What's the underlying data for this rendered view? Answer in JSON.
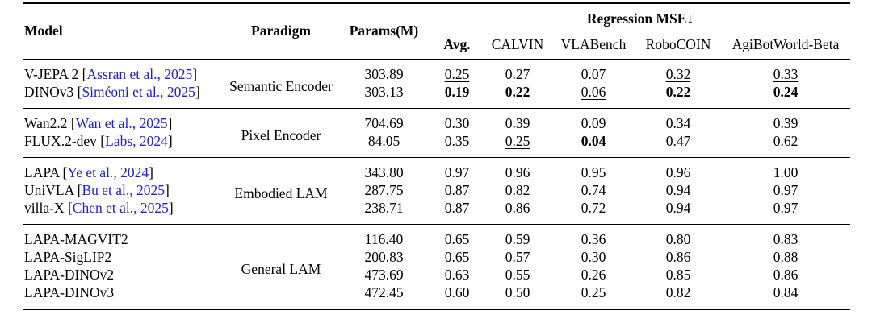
{
  "colors": {
    "background": "#FFFFFF",
    "text": "#000000",
    "rule": "#000000",
    "citation_link": "#2222CC"
  },
  "table": {
    "citation_brackets": [
      "[",
      "]"
    ],
    "columns": {
      "model": "Model",
      "paradigm": "Paradigm",
      "params": "Params(M)",
      "mse_group": "Regression MSE↓",
      "subcolumns": [
        "Avg.",
        "CALVIN",
        "VLABench",
        "RoboCOIN",
        "AgiBotWorld-Beta"
      ]
    },
    "groups": [
      {
        "paradigm": "Semantic Encoder",
        "rows": [
          {
            "model": "V-JEPA 2",
            "citation": "Assran et al., 2025",
            "params": "303.89",
            "mse": [
              {
                "value": "0.25",
                "emphasis": "underline"
              },
              {
                "value": "0.27",
                "emphasis": "none"
              },
              {
                "value": "0.07",
                "emphasis": "none"
              },
              {
                "value": "0.32",
                "emphasis": "underline"
              },
              {
                "value": "0.33",
                "emphasis": "underline"
              }
            ]
          },
          {
            "model": "DINOv3",
            "citation": "Siméoni et al., 2025",
            "params": "303.13",
            "mse": [
              {
                "value": "0.19",
                "emphasis": "bold"
              },
              {
                "value": "0.22",
                "emphasis": "bold"
              },
              {
                "value": "0.06",
                "emphasis": "underline"
              },
              {
                "value": "0.22",
                "emphasis": "bold"
              },
              {
                "value": "0.24",
                "emphasis": "bold"
              }
            ]
          }
        ]
      },
      {
        "paradigm": "Pixel Encoder",
        "rows": [
          {
            "model": "Wan2.2",
            "citation": "Wan et al., 2025",
            "params": "704.69",
            "mse": [
              {
                "value": "0.30",
                "emphasis": "none"
              },
              {
                "value": "0.39",
                "emphasis": "none"
              },
              {
                "value": "0.09",
                "emphasis": "none"
              },
              {
                "value": "0.34",
                "emphasis": "none"
              },
              {
                "value": "0.39",
                "emphasis": "none"
              }
            ]
          },
          {
            "model": "FLUX.2-dev",
            "citation": "Labs, 2024",
            "params": "84.05",
            "mse": [
              {
                "value": "0.35",
                "emphasis": "none"
              },
              {
                "value": "0.25",
                "emphasis": "underline"
              },
              {
                "value": "0.04",
                "emphasis": "bold"
              },
              {
                "value": "0.47",
                "emphasis": "none"
              },
              {
                "value": "0.62",
                "emphasis": "none"
              }
            ]
          }
        ]
      },
      {
        "paradigm": "Embodied LAM",
        "rows": [
          {
            "model": "LAPA",
            "citation": "Ye et al., 2024",
            "params": "343.80",
            "mse": [
              {
                "value": "0.97",
                "emphasis": "none"
              },
              {
                "value": "0.96",
                "emphasis": "none"
              },
              {
                "value": "0.95",
                "emphasis": "none"
              },
              {
                "value": "0.96",
                "emphasis": "none"
              },
              {
                "value": "1.00",
                "emphasis": "none"
              }
            ]
          },
          {
            "model": "UniVLA",
            "citation": "Bu et al., 2025",
            "params": "287.75",
            "mse": [
              {
                "value": "0.87",
                "emphasis": "none"
              },
              {
                "value": "0.82",
                "emphasis": "none"
              },
              {
                "value": "0.74",
                "emphasis": "none"
              },
              {
                "value": "0.94",
                "emphasis": "none"
              },
              {
                "value": "0.97",
                "emphasis": "none"
              }
            ]
          },
          {
            "model": "villa-X",
            "citation": "Chen et al., 2025",
            "params": "238.71",
            "mse": [
              {
                "value": "0.87",
                "emphasis": "none"
              },
              {
                "value": "0.86",
                "emphasis": "none"
              },
              {
                "value": "0.72",
                "emphasis": "none"
              },
              {
                "value": "0.94",
                "emphasis": "none"
              },
              {
                "value": "0.97",
                "emphasis": "none"
              }
            ]
          }
        ]
      },
      {
        "paradigm": "General LAM",
        "rows": [
          {
            "model": "LAPA-MAGVIT2",
            "params": "116.40",
            "mse": [
              {
                "value": "0.65",
                "emphasis": "none"
              },
              {
                "value": "0.59",
                "emphasis": "none"
              },
              {
                "value": "0.36",
                "emphasis": "none"
              },
              {
                "value": "0.80",
                "emphasis": "none"
              },
              {
                "value": "0.83",
                "emphasis": "none"
              }
            ]
          },
          {
            "model": "LAPA-SigLIP2",
            "params": "200.83",
            "mse": [
              {
                "value": "0.65",
                "emphasis": "none"
              },
              {
                "value": "0.57",
                "emphasis": "none"
              },
              {
                "value": "0.30",
                "emphasis": "none"
              },
              {
                "value": "0.86",
                "emphasis": "none"
              },
              {
                "value": "0.88",
                "emphasis": "none"
              }
            ]
          },
          {
            "model": "LAPA-DINOv2",
            "params": "473.69",
            "mse": [
              {
                "value": "0.63",
                "emphasis": "none"
              },
              {
                "value": "0.55",
                "emphasis": "none"
              },
              {
                "value": "0.26",
                "emphasis": "none"
              },
              {
                "value": "0.85",
                "emphasis": "none"
              },
              {
                "value": "0.86",
                "emphasis": "none"
              }
            ]
          },
          {
            "model": "LAPA-DINOv3",
            "params": "472.45",
            "mse": [
              {
                "value": "0.60",
                "emphasis": "none"
              },
              {
                "value": "0.50",
                "emphasis": "none"
              },
              {
                "value": "0.25",
                "emphasis": "none"
              },
              {
                "value": "0.82",
                "emphasis": "none"
              },
              {
                "value": "0.84",
                "emphasis": "none"
              }
            ]
          }
        ]
      }
    ]
  }
}
